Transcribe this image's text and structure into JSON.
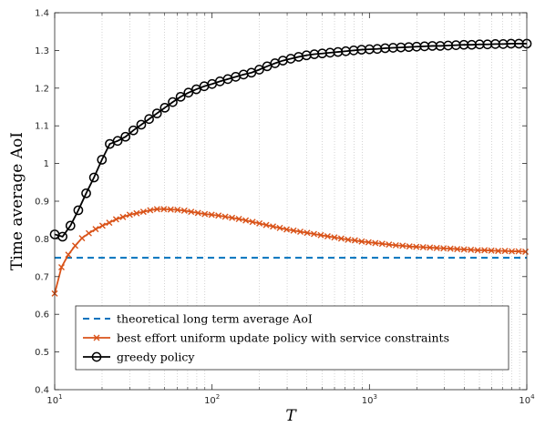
{
  "chart_data": {
    "type": "line",
    "xlabel": "T",
    "ylabel": "Time average AoI",
    "xscale": "log",
    "xlim": [
      10,
      10000
    ],
    "ylim": [
      0.4,
      1.4
    ],
    "xticks": [
      {
        "value": 10,
        "mantissa": "10",
        "exp": "1"
      },
      {
        "value": 100,
        "mantissa": "10",
        "exp": "2"
      },
      {
        "value": 1000,
        "mantissa": "10",
        "exp": "3"
      },
      {
        "value": 10000,
        "mantissa": "10",
        "exp": "4"
      }
    ],
    "yticks": [
      "0.4",
      "0.5",
      "0.6",
      "0.7",
      "0.8",
      "0.9",
      "1",
      "1.1",
      "1.2",
      "1.3",
      "1.4"
    ],
    "grid": "x-minor-dotted",
    "legend_position": "lower-left",
    "series": [
      {
        "name": "theoretical long term average AoI",
        "style": "dashed",
        "color": "#0072BD",
        "x": [
          10,
          10000
        ],
        "y": [
          0.75,
          0.75
        ]
      },
      {
        "name": "best effort uniform update policy with service constraints",
        "style": "solid-x",
        "color": "#D95319",
        "x": [
          10,
          11.05,
          12.21,
          13.5,
          14.91,
          16.48,
          18.21,
          20.12,
          22.23,
          24.56,
          27.14,
          29.99,
          33.14,
          36.62,
          40.46,
          44.71,
          49.4,
          54.59,
          60.32,
          66.65,
          73.65,
          81.38,
          89.92,
          99.36,
          109.8,
          121.3,
          134.0,
          148.1,
          163.7,
          180.9,
          199.9,
          220.8,
          244.0,
          269.6,
          297.9,
          329.2,
          363.8,
          402.0,
          444.2,
          490.8,
          542.3,
          599.2,
          662.1,
          731.6,
          808.4,
          893.3,
          987.1,
          1090.7,
          1205.2,
          1331.7,
          1471.5,
          1626.0,
          1796.7,
          1985.3,
          2193.7,
          2424.0,
          2678.5,
          2959.7,
          3270.4,
          3613.7,
          3993.1,
          4412.3,
          4875.5,
          5387.3,
          5952.9,
          6577.9,
          7268.4,
          8031.4,
          8874.6,
          9806.2
        ],
        "y": [
          0.655,
          0.725,
          0.758,
          0.782,
          0.802,
          0.815,
          0.826,
          0.835,
          0.843,
          0.852,
          0.858,
          0.864,
          0.868,
          0.872,
          0.876,
          0.879,
          0.879,
          0.878,
          0.877,
          0.875,
          0.872,
          0.869,
          0.866,
          0.864,
          0.862,
          0.859,
          0.856,
          0.853,
          0.849,
          0.845,
          0.841,
          0.837,
          0.833,
          0.829,
          0.825,
          0.822,
          0.819,
          0.816,
          0.813,
          0.81,
          0.807,
          0.804,
          0.801,
          0.798,
          0.796,
          0.793,
          0.791,
          0.789,
          0.787,
          0.785,
          0.783,
          0.782,
          0.78,
          0.779,
          0.778,
          0.777,
          0.776,
          0.775,
          0.774,
          0.773,
          0.772,
          0.771,
          0.77,
          0.77,
          0.769,
          0.768,
          0.768,
          0.767,
          0.767,
          0.766
        ]
      },
      {
        "name": "greedy policy",
        "style": "solid-o",
        "color": "#000000",
        "x": [
          10,
          11.22,
          12.59,
          14.13,
          15.85,
          17.78,
          19.95,
          22.39,
          25.12,
          28.18,
          31.62,
          35.48,
          39.81,
          44.67,
          50.12,
          56.23,
          63.1,
          70.79,
          79.43,
          89.13,
          100,
          112.2,
          125.9,
          141.3,
          158.5,
          177.8,
          199.5,
          223.9,
          251.2,
          281.8,
          316.2,
          354.8,
          398.1,
          446.7,
          501.2,
          562.3,
          631,
          707.9,
          794.3,
          891.3,
          1000,
          1122,
          1259,
          1413,
          1585,
          1778,
          1995,
          2239,
          2512,
          2818,
          3162,
          3548,
          3981,
          4467,
          5012,
          5623,
          6310,
          7079,
          7943,
          8913,
          10000
        ],
        "y": [
          0.812,
          0.806,
          0.835,
          0.876,
          0.921,
          0.963,
          1.01,
          1.052,
          1.06,
          1.071,
          1.088,
          1.103,
          1.118,
          1.133,
          1.148,
          1.163,
          1.177,
          1.188,
          1.197,
          1.205,
          1.211,
          1.218,
          1.224,
          1.23,
          1.236,
          1.241,
          1.249,
          1.258,
          1.266,
          1.273,
          1.278,
          1.283,
          1.287,
          1.29,
          1.292,
          1.294,
          1.296,
          1.298,
          1.3,
          1.302,
          1.303,
          1.304,
          1.306,
          1.307,
          1.308,
          1.309,
          1.31,
          1.311,
          1.312,
          1.312,
          1.313,
          1.314,
          1.315,
          1.315,
          1.316,
          1.316,
          1.317,
          1.317,
          1.318,
          1.318,
          1.318
        ]
      }
    ]
  }
}
